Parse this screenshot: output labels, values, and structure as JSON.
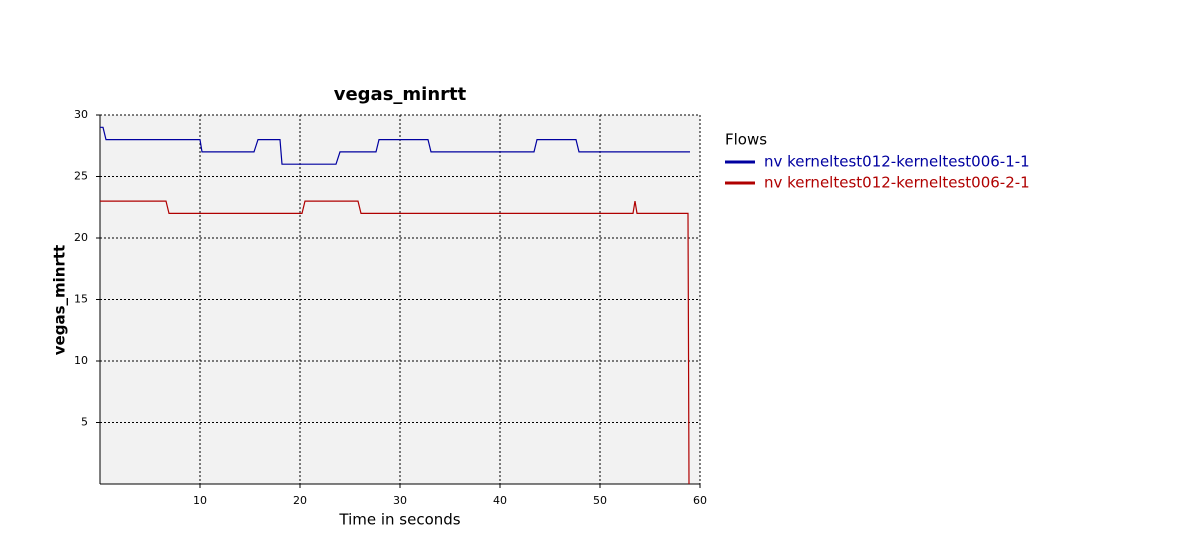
{
  "chart_data": {
    "type": "line",
    "title": "vegas_minrtt",
    "x_label": "Time in seconds",
    "y_label": "vegas_minrtt",
    "xlim": [
      0,
      60
    ],
    "ylim": [
      0,
      30
    ],
    "xticks": [
      10,
      20,
      30,
      40,
      50,
      60
    ],
    "yticks": [
      5,
      10,
      15,
      20,
      25,
      30
    ],
    "grid": true,
    "legend_title": "Flows",
    "legend": "right",
    "series": [
      {
        "name": "nv kerneltest012-kerneltest006-1-1",
        "color": "#0000a0",
        "x": [
          0,
          0.3,
          0.6,
          10,
          10.2,
          15.4,
          15.8,
          18,
          18.2,
          23.6,
          24,
          27.6,
          27.9,
          32.8,
          33.1,
          43.4,
          43.7,
          47.6,
          47.9,
          59
        ],
        "values": [
          29,
          29,
          28,
          28,
          27,
          27,
          28,
          28,
          26,
          26,
          27,
          27,
          28,
          28,
          27,
          27,
          28,
          28,
          27,
          27
        ]
      },
      {
        "name": "nv kerneltest012-kerneltest006-2-1",
        "color": "#b00000",
        "x": [
          0,
          6.6,
          6.9,
          20.2,
          20.5,
          25.8,
          26.1,
          53.3,
          53.5,
          53.7,
          58.8,
          58.9
        ],
        "values": [
          23,
          23,
          22,
          22,
          23,
          23,
          22,
          22,
          23,
          22,
          22,
          0
        ]
      }
    ]
  }
}
